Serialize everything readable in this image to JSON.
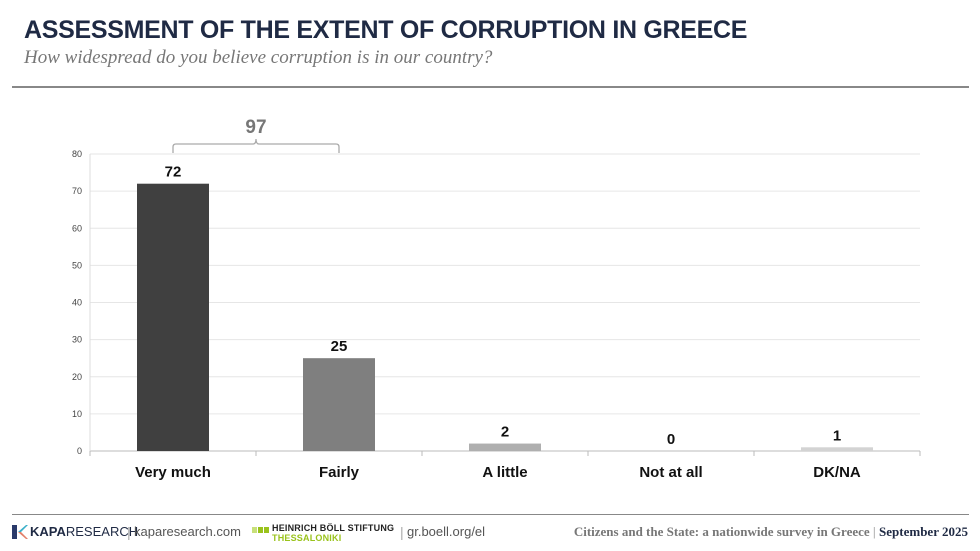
{
  "header": {
    "title": "ASSESSMENT OF THE EXTENT OF CORRUPTION IN GREECE",
    "subtitle": "How widespread do you believe corruption is  in our country?"
  },
  "chart_data": {
    "type": "bar",
    "categories": [
      "Very much",
      "Fairly",
      "A little",
      "Not at all",
      "DK/NA"
    ],
    "values": [
      72,
      25,
      2,
      0,
      1
    ],
    "colors": [
      "#404040",
      "#7f7f7f",
      "#afafaf",
      "#c8c8c8",
      "#d3d3d3"
    ],
    "ylim": [
      0,
      80
    ],
    "yticks": [
      0,
      10,
      20,
      30,
      40,
      50,
      60,
      70,
      80
    ],
    "grid": true,
    "annotation": {
      "label": "97",
      "spans": [
        "Very much",
        "Fairly"
      ]
    }
  },
  "footer": {
    "kapa_brand_bold": "KAPA",
    "kapa_brand": "RESEARCH",
    "kapa_url": "kaparesearch.com",
    "boell_name": "HEINRICH BÖLL STIFTUNG",
    "boell_sub": "THESSALONIKI",
    "boell_url": "gr.boell.org/el",
    "survey": "Citizens and the State: a nationwide survey in Greece",
    "separator": "|",
    "date": "September 2025"
  }
}
